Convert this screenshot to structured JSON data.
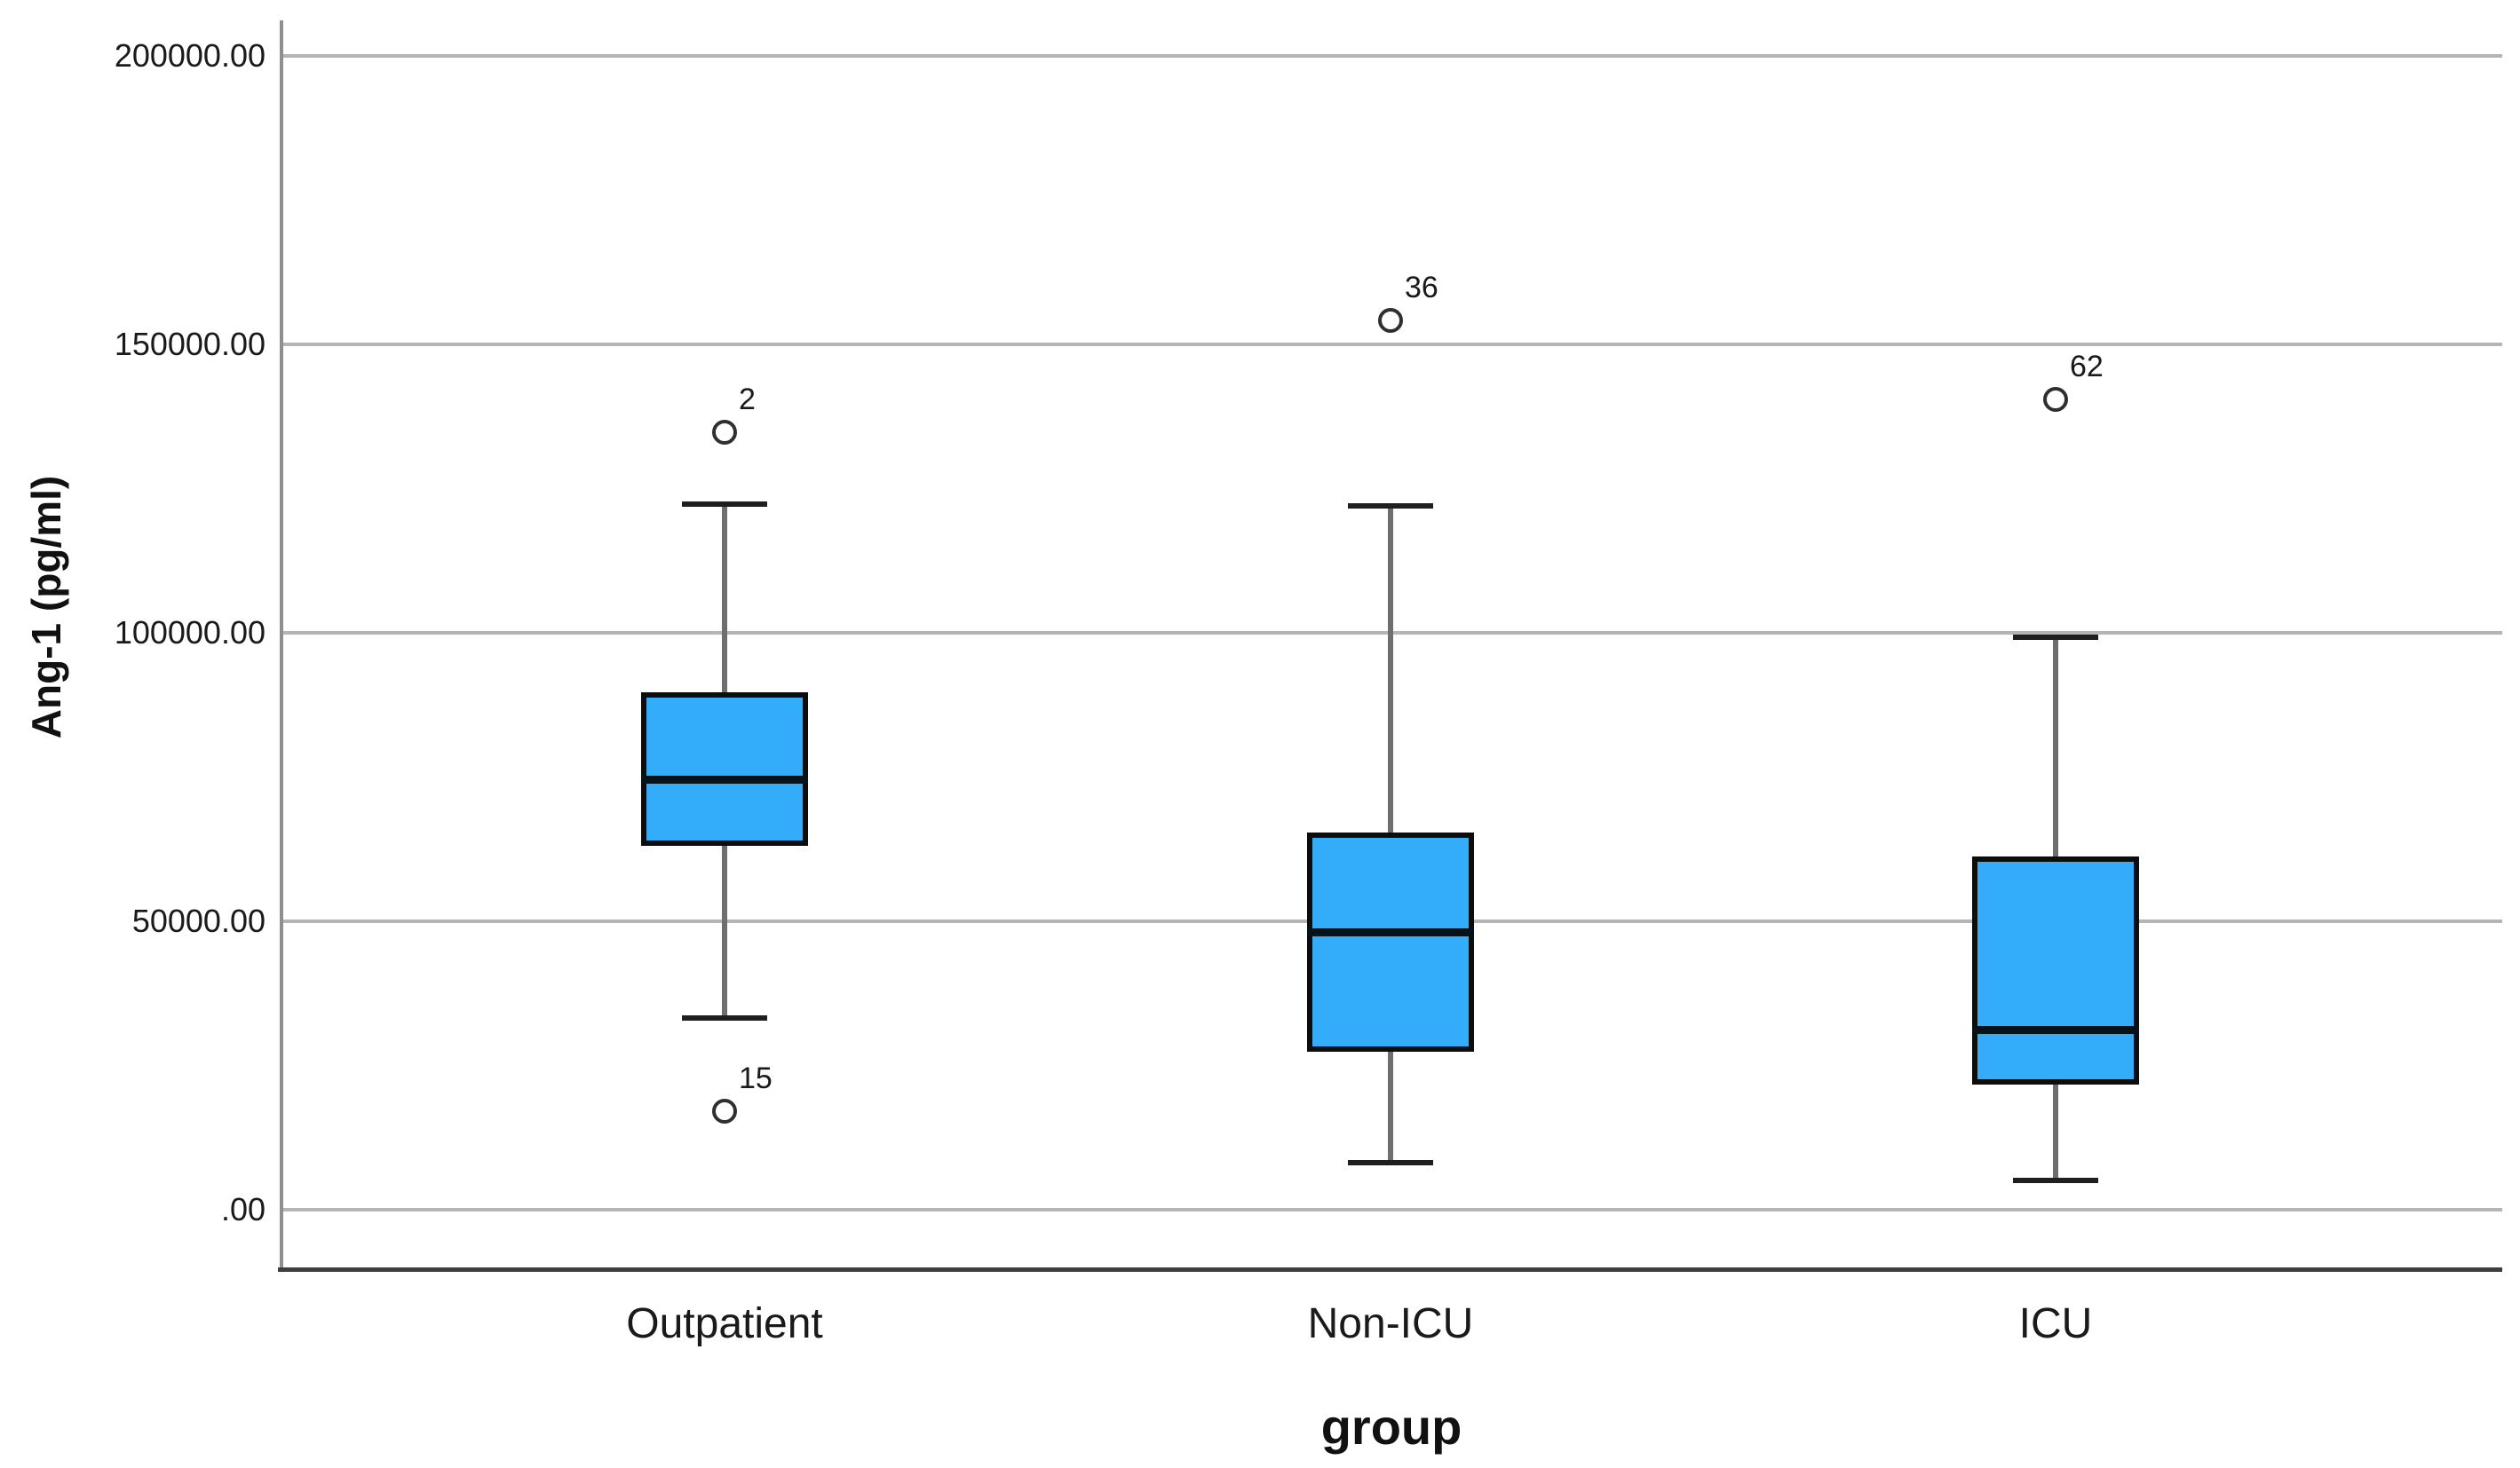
{
  "chart_data": {
    "type": "box",
    "title": "",
    "xlabel": "group",
    "ylabel": "Ang-1 (pg/ml)",
    "ylim": [
      0,
      206000
    ],
    "grid": "horizontal",
    "legend": "none",
    "y_axis": {
      "ticks": [
        {
          "label": ".00",
          "value": 0
        },
        {
          "label": "50000.00",
          "value": 50000
        },
        {
          "label": "100000.00",
          "value": 100000
        },
        {
          "label": "150000.00",
          "value": 150000
        },
        {
          "label": "200000.00",
          "value": 200000
        }
      ]
    },
    "categories": [
      "Outpatient",
      "Non-ICU",
      "ICU"
    ],
    "boxes": [
      {
        "category": "Outpatient",
        "whisker_low": 33200,
        "q1": 63100,
        "median": 74600,
        "q3": 89700,
        "whisker_high": 122300,
        "outliers": [
          {
            "id": "2",
            "value": 134800
          },
          {
            "id": "15",
            "value": 17100
          }
        ]
      },
      {
        "category": "Non-ICU",
        "whisker_low": 8200,
        "q1": 27400,
        "median": 48200,
        "q3": 65400,
        "whisker_high": 122000,
        "outliers": [
          {
            "id": "36",
            "value": 154200
          }
        ]
      },
      {
        "category": "ICU",
        "whisker_low": 5100,
        "q1": 21700,
        "median": 31200,
        "q3": 61200,
        "whisker_high": 99200,
        "outliers": [
          {
            "id": "62",
            "value": 140500
          }
        ]
      }
    ],
    "colors": {
      "box_fill": "#33ACFA",
      "box_border": "#0d0d0d",
      "median": "#07131b",
      "whisker_stem": "#6e6e6e",
      "whisker_cap": "#1f1f1f",
      "outlier_stroke": "#2f2f2f",
      "gridline": "#b5b5b5",
      "y_axis_line": "#8f8f8f",
      "x_axis_line": "#3f3f3f",
      "text": "#1a1a1a"
    }
  }
}
